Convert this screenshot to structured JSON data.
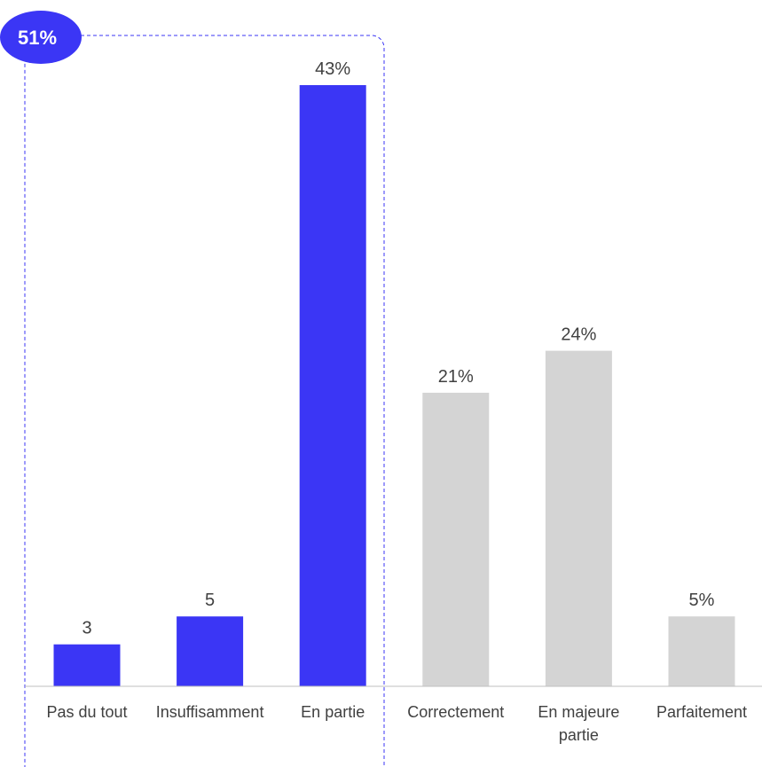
{
  "chart_data": {
    "type": "bar",
    "categories": [
      [
        "Pas du tout"
      ],
      [
        "Insuffisamment"
      ],
      [
        "En partie"
      ],
      [
        "Correctement"
      ],
      [
        "En majeure",
        "partie"
      ],
      [
        "Parfaitement"
      ]
    ],
    "values": [
      3,
      5,
      43,
      21,
      24,
      5
    ],
    "data_labels": [
      "3",
      "5",
      "43%",
      "21%",
      "24%",
      "5%"
    ],
    "highlight_indices": [
      0,
      1,
      2
    ],
    "colors": {
      "highlight": "#3b36f5",
      "other": "#d4d4d4",
      "group_border": "#3b36f5",
      "axis": "#bfbfbf",
      "text": "#404040",
      "badge_text": "#ffffff"
    },
    "group_badge": "51%",
    "ylim": [
      0,
      45
    ],
    "grid": false,
    "legend": "none",
    "title": "",
    "xlabel": "",
    "ylabel": ""
  }
}
